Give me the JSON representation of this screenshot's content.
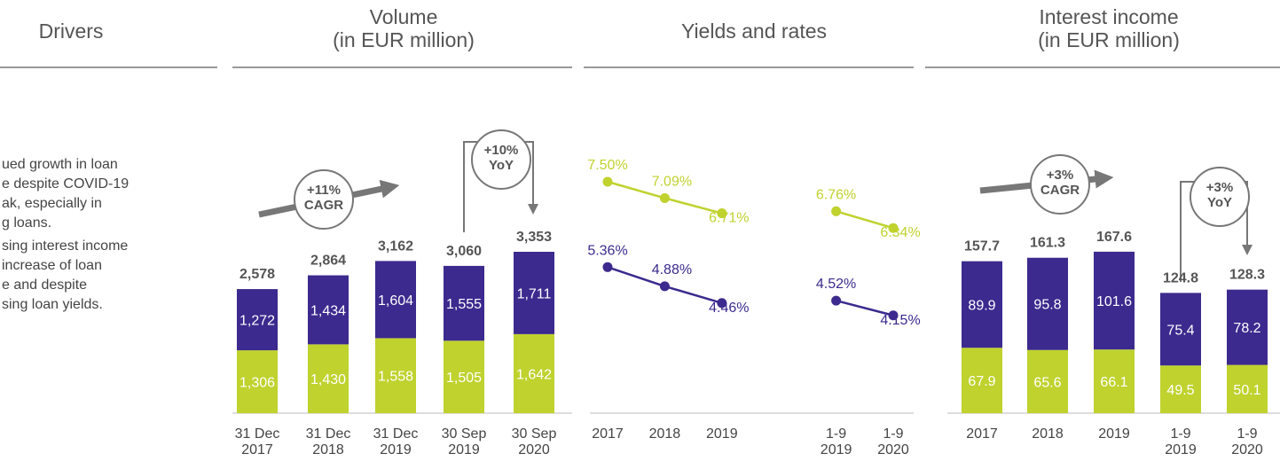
{
  "headers": [
    "Drivers",
    "Volume\n(in EUR million)",
    "Yields and rates",
    "Interest income\n(in EUR million)"
  ],
  "drivers": [
    "ued growth in loan",
    "e despite  COVID-19",
    "ak, especially in",
    "g loans.",
    "sing interest income",
    "increase of loan",
    "e and despite",
    "sing loan yields."
  ],
  "chart_data": [
    {
      "type": "bar",
      "stacked": true,
      "categories": [
        "31 Dec\n2017",
        "31 Dec\n2018",
        "31 Dec\n2019",
        "30 Sep\n2019",
        "30 Sep\n2020"
      ],
      "series": [
        {
          "color": "#bfd22e",
          "values": [
            1306,
            1430,
            1558,
            1505,
            1642
          ],
          "value_labels": [
            "1,306",
            "1,430",
            "1,558",
            "1,505",
            "1,642"
          ]
        },
        {
          "color": "#3c2a8e",
          "values": [
            1272,
            1434,
            1604,
            1555,
            1711
          ],
          "value_labels": [
            "1,272",
            "1,434",
            "1,604",
            "1,555",
            "1,711"
          ]
        }
      ],
      "totals": [
        2578,
        2864,
        3162,
        3060,
        3353
      ],
      "total_labels": [
        "2,578",
        "2,864",
        "3,162",
        "3,060",
        "3,353"
      ],
      "annotations": [
        "+11%\nCAGR",
        "+10%\nYoY"
      ]
    },
    {
      "type": "line",
      "categories": [
        "2017",
        "2018",
        "2019",
        null,
        "1-9\n2019",
        "1-9\n2020"
      ],
      "series": [
        {
          "color": "#bfd22e",
          "values": [
            7.5,
            7.09,
            6.71,
            null,
            6.76,
            6.34
          ],
          "value_labels": [
            "7.50%",
            "7.09%",
            "6.71%",
            null,
            "6.76%",
            "6.34%"
          ]
        },
        {
          "color": "#3c2a8e",
          "values": [
            5.36,
            4.88,
            4.46,
            null,
            4.52,
            4.15
          ],
          "value_labels": [
            "5.36%",
            "4.88%",
            "4.46%",
            null,
            "4.52%",
            "4.15%"
          ]
        }
      ]
    },
    {
      "type": "bar",
      "stacked": true,
      "categories": [
        "2017",
        "2018",
        "2019",
        "1-9\n2019",
        "1-9\n2020"
      ],
      "series": [
        {
          "color": "#bfd22e",
          "values": [
            67.9,
            65.6,
            66.1,
            49.5,
            50.1
          ]
        },
        {
          "color": "#3c2a8e",
          "values": [
            89.9,
            95.8,
            101.6,
            75.4,
            78.2
          ]
        }
      ],
      "totals": [
        157.7,
        161.3,
        167.6,
        124.8,
        128.3
      ],
      "annotations": [
        "+3%\nCAGR",
        "+3%\nYoY"
      ]
    }
  ]
}
